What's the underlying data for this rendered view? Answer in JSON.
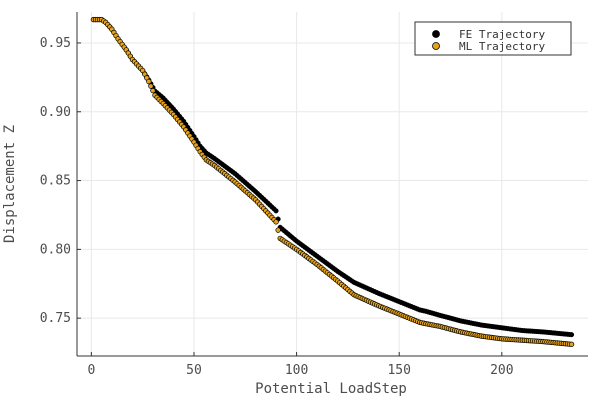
{
  "chart_data": {
    "type": "scatter",
    "title": "",
    "xlabel": "Potential LoadStep",
    "ylabel": "Displacement Z",
    "xlim": [
      -7,
      242
    ],
    "ylim": [
      0.7225,
      0.9725
    ],
    "xticks": [
      0,
      50,
      100,
      150,
      200
    ],
    "xtick_labels": [
      "0",
      "50",
      "100",
      "150",
      "200"
    ],
    "yticks": [
      0.75,
      0.8,
      0.85,
      0.9,
      0.95
    ],
    "ytick_labels": [
      "0.75",
      "0.80",
      "0.85",
      "0.90",
      "0.95"
    ],
    "grid": true,
    "legend_position": "top-right",
    "x_range": [
      1,
      234
    ],
    "series": [
      {
        "name": "FE Trajectory",
        "color": "#000000",
        "marker": "circle",
        "anchors_x": [
          1,
          5,
          7,
          10,
          13,
          17,
          20,
          25,
          28,
          31,
          35,
          40,
          45,
          50,
          53,
          56,
          60,
          70,
          80,
          90,
          92,
          100,
          110,
          120,
          128,
          140,
          150,
          160,
          163,
          170,
          180,
          190,
          200,
          210,
          220,
          234
        ],
        "anchors_y": [
          0.967,
          0.967,
          0.965,
          0.96,
          0.953,
          0.945,
          0.938,
          0.93,
          0.923,
          0.915,
          0.91,
          0.902,
          0.893,
          0.882,
          0.875,
          0.87,
          0.866,
          0.855,
          0.842,
          0.828,
          0.816,
          0.806,
          0.795,
          0.784,
          0.776,
          0.768,
          0.762,
          0.756,
          0.755,
          0.752,
          0.748,
          0.745,
          0.743,
          0.741,
          0.74,
          0.738
        ]
      },
      {
        "name": "ML Trajectory",
        "color": "#e5a31a",
        "marker": "circle",
        "anchors_x": [
          1,
          5,
          7,
          10,
          13,
          17,
          20,
          25,
          28,
          31,
          35,
          40,
          45,
          50,
          53,
          56,
          60,
          70,
          80,
          90,
          92,
          100,
          110,
          120,
          128,
          140,
          150,
          160,
          163,
          170,
          180,
          190,
          200,
          210,
          220,
          234
        ],
        "anchors_y": [
          0.967,
          0.967,
          0.965,
          0.96,
          0.953,
          0.945,
          0.938,
          0.93,
          0.922,
          0.912,
          0.906,
          0.898,
          0.889,
          0.878,
          0.871,
          0.865,
          0.861,
          0.849,
          0.836,
          0.82,
          0.808,
          0.8,
          0.789,
          0.777,
          0.767,
          0.759,
          0.753,
          0.747,
          0.746,
          0.744,
          0.74,
          0.737,
          0.735,
          0.734,
          0.733,
          0.731
        ]
      }
    ]
  }
}
